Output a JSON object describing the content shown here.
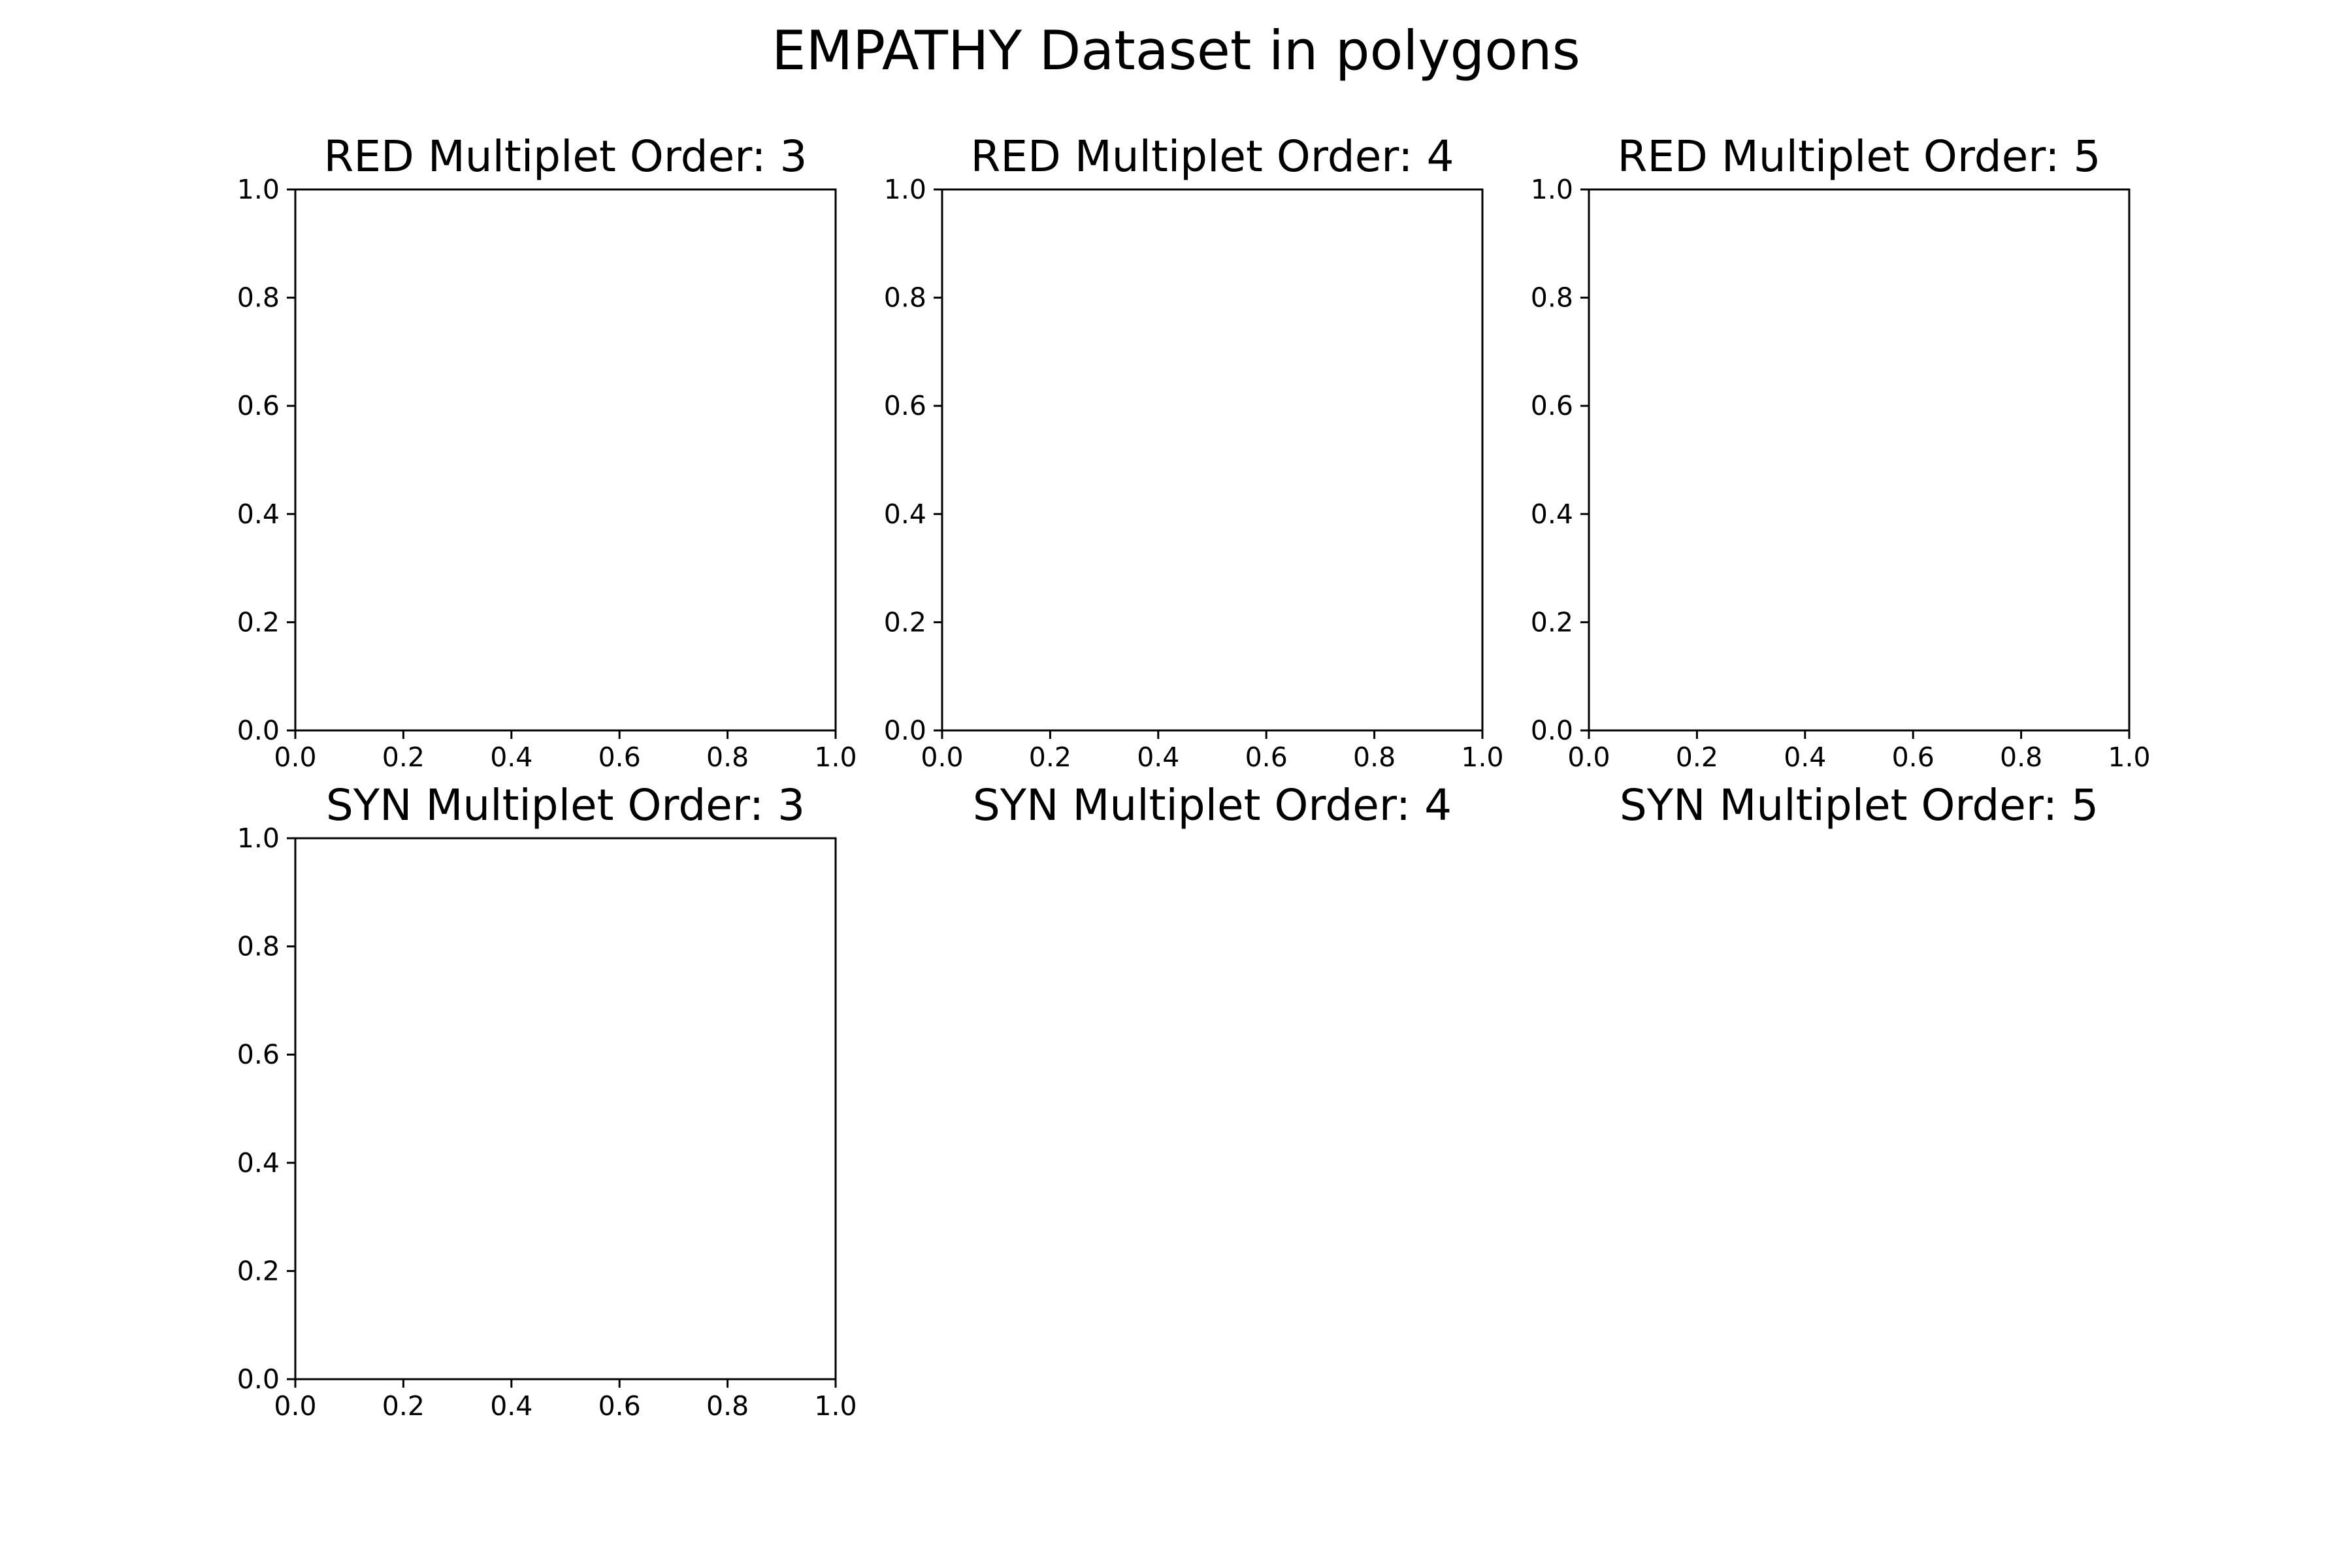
{
  "figure": {
    "title": "EMPATHY Dataset in polygons"
  },
  "colors": {
    "background": "#ffffff",
    "axes": "#000000",
    "text": "#000000"
  },
  "chart_data": [
    {
      "type": "scatter",
      "title": "RED Multiplet Order: 3",
      "xlabel": "",
      "ylabel": "",
      "xlim": [
        0.0,
        1.0
      ],
      "ylim": [
        0.0,
        1.0
      ],
      "x_ticks": [
        "0.0",
        "0.2",
        "0.4",
        "0.6",
        "0.8",
        "1.0"
      ],
      "y_ticks": [
        "0.0",
        "0.2",
        "0.4",
        "0.6",
        "0.8",
        "1.0"
      ],
      "series": [],
      "grid": false,
      "axes_visible": true
    },
    {
      "type": "scatter",
      "title": "RED Multiplet Order: 4",
      "xlabel": "",
      "ylabel": "",
      "xlim": [
        0.0,
        1.0
      ],
      "ylim": [
        0.0,
        1.0
      ],
      "x_ticks": [
        "0.0",
        "0.2",
        "0.4",
        "0.6",
        "0.8",
        "1.0"
      ],
      "y_ticks": [
        "0.0",
        "0.2",
        "0.4",
        "0.6",
        "0.8",
        "1.0"
      ],
      "series": [],
      "grid": false,
      "axes_visible": true
    },
    {
      "type": "scatter",
      "title": "RED Multiplet Order: 5",
      "xlabel": "",
      "ylabel": "",
      "xlim": [
        0.0,
        1.0
      ],
      "ylim": [
        0.0,
        1.0
      ],
      "x_ticks": [
        "0.0",
        "0.2",
        "0.4",
        "0.6",
        "0.8",
        "1.0"
      ],
      "y_ticks": [
        "0.0",
        "0.2",
        "0.4",
        "0.6",
        "0.8",
        "1.0"
      ],
      "series": [],
      "grid": false,
      "axes_visible": true
    },
    {
      "type": "scatter",
      "title": "SYN Multiplet Order: 3",
      "xlabel": "",
      "ylabel": "",
      "xlim": [
        0.0,
        1.0
      ],
      "ylim": [
        0.0,
        1.0
      ],
      "x_ticks": [
        "0.0",
        "0.2",
        "0.4",
        "0.6",
        "0.8",
        "1.0"
      ],
      "y_ticks": [
        "0.0",
        "0.2",
        "0.4",
        "0.6",
        "0.8",
        "1.0"
      ],
      "series": [],
      "grid": false,
      "axes_visible": true
    },
    {
      "type": "scatter",
      "title": "SYN Multiplet Order: 4",
      "series": [],
      "grid": false,
      "axes_visible": false
    },
    {
      "type": "scatter",
      "title": "SYN Multiplet Order: 5",
      "series": [],
      "grid": false,
      "axes_visible": false
    }
  ]
}
